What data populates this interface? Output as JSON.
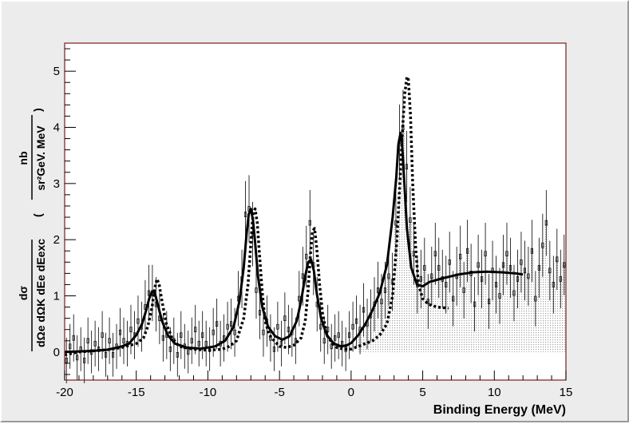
{
  "chart_data": {
    "type": "line",
    "xlabel": "Binding Energy (MeV)",
    "ylabel": {
      "numerator": "dσ",
      "denominator": "dΩe dΩK dEe dEexc",
      "unit_numerator": "nb",
      "unit_denominator": "sr²GeV. MeV"
    },
    "xlim": [
      -20,
      15
    ],
    "ylim": [
      -0.5,
      5.5
    ],
    "x_ticks": [
      "-20",
      "-15",
      "-10",
      "-5",
      "0",
      "5",
      "10",
      "15"
    ],
    "y_ticks": [
      "0",
      "1",
      "2",
      "3",
      "4",
      "5"
    ],
    "grid": false,
    "legend": "none",
    "colors": {
      "data": "#000000",
      "frame": "#7a1f1f",
      "fill": "#a0a0a0",
      "background": "#ececec"
    },
    "series": [
      {
        "style": "histogram-with-errors",
        "x": [
          -20.0,
          -19.75,
          -19.5,
          -19.25,
          -19.0,
          -18.75,
          -18.5,
          -18.25,
          -18.0,
          -17.75,
          -17.5,
          -17.25,
          -17.0,
          -16.75,
          -16.5,
          -16.25,
          -16.0,
          -15.75,
          -15.5,
          -15.25,
          -15.0,
          -14.75,
          -14.5,
          -14.25,
          -14.0,
          -13.75,
          -13.5,
          -13.25,
          -13.0,
          -12.75,
          -12.5,
          -12.25,
          -12.0,
          -11.75,
          -11.5,
          -11.25,
          -11.0,
          -10.75,
          -10.5,
          -10.25,
          -10.0,
          -9.75,
          -9.5,
          -9.25,
          -9.0,
          -8.75,
          -8.5,
          -8.25,
          -8.0,
          -7.75,
          -7.5,
          -7.25,
          -7.0,
          -6.75,
          -6.5,
          -6.25,
          -6.0,
          -5.75,
          -5.5,
          -5.25,
          -5.0,
          -4.75,
          -4.5,
          -4.25,
          -4.0,
          -3.75,
          -3.5,
          -3.25,
          -3.0,
          -2.75,
          -2.5,
          -2.25,
          -2.0,
          -1.75,
          -1.5,
          -1.25,
          -1.0,
          -0.75,
          -0.5,
          -0.25,
          0.0,
          0.25,
          0.5,
          0.75,
          1.0,
          1.25,
          1.5,
          1.75,
          2.0,
          2.25,
          2.5,
          2.75,
          3.0,
          3.25,
          3.5,
          3.75,
          4.0,
          4.25,
          4.5,
          4.75,
          5.0,
          5.25,
          5.5,
          5.75,
          6.0,
          6.25,
          6.5,
          6.75,
          7.0,
          7.25,
          7.5,
          7.75,
          8.0,
          8.25,
          8.5,
          8.75,
          9.0,
          9.25,
          9.5,
          9.75,
          10.0,
          10.25,
          10.5,
          10.75,
          11.0,
          11.25,
          11.5,
          11.75,
          12.0,
          12.25,
          12.5,
          12.75,
          13.0,
          13.25,
          13.5,
          13.75,
          14.0,
          14.25,
          14.5,
          14.75
        ],
        "y": [
          -0.15,
          0.1,
          0.25,
          -0.1,
          0.05,
          -0.15,
          0.2,
          0.0,
          0.15,
          0.05,
          0.3,
          -0.05,
          0.2,
          -0.05,
          0.1,
          0.35,
          0.2,
          0.15,
          0.4,
          0.3,
          0.55,
          0.45,
          0.8,
          1.05,
          1.05,
          0.85,
          0.6,
          0.25,
          0.3,
          0.05,
          0.2,
          -0.05,
          0.3,
          0.1,
          0.0,
          0.2,
          0.4,
          0.15,
          0.3,
          0.15,
          0.05,
          0.35,
          0.5,
          0.15,
          0.25,
          0.45,
          0.5,
          0.35,
          0.95,
          1.3,
          2.45,
          2.55,
          2.1,
          1.1,
          0.7,
          0.35,
          0.55,
          0.25,
          0.05,
          0.45,
          0.15,
          0.6,
          0.4,
          0.35,
          0.2,
          0.95,
          1.35,
          1.7,
          2.3,
          1.55,
          0.85,
          0.45,
          0.2,
          0.4,
          0.1,
          0.25,
          0.3,
          0.15,
          0.05,
          0.3,
          0.45,
          0.55,
          0.4,
          0.75,
          0.5,
          0.65,
          0.85,
          1.1,
          0.9,
          1.1,
          1.35,
          1.25,
          2.3,
          3.75,
          4.0,
          3.3,
          2.35,
          1.75,
          1.2,
          1.3,
          1.5,
          0.9,
          1.35,
          1.75,
          1.5,
          1.3,
          1.2,
          1.6,
          0.95,
          1.35,
          1.7,
          1.1,
          1.8,
          1.4,
          0.85,
          1.55,
          1.3,
          1.75,
          0.9,
          1.45,
          1.2,
          1.0,
          1.55,
          1.75,
          1.5,
          1.05,
          1.3,
          1.6,
          1.45,
          1.35,
          1.8,
          0.95,
          1.5,
          1.9,
          2.3,
          1.45,
          1.2,
          1.65,
          1.3,
          1.55
        ]
      },
      {
        "style": "solid-curve",
        "x": [
          -20,
          -19,
          -18,
          -17,
          -16,
          -15.5,
          -15,
          -14.6,
          -14.3,
          -14.1,
          -13.9,
          -13.7,
          -13.5,
          -13.2,
          -12.8,
          -12.3,
          -11.5,
          -10.5,
          -9.5,
          -8.8,
          -8.2,
          -7.8,
          -7.5,
          -7.3,
          -7.15,
          -7.0,
          -6.85,
          -6.7,
          -6.5,
          -6.2,
          -5.8,
          -5.3,
          -4.8,
          -4.3,
          -3.8,
          -3.5,
          -3.2,
          -3.0,
          -2.8,
          -2.6,
          -2.4,
          -2.1,
          -1.7,
          -1.2,
          -0.7,
          -0.3,
          0.0,
          0.5,
          1.0,
          1.5,
          2.0,
          2.5,
          2.9,
          3.15,
          3.3,
          3.45,
          3.55,
          3.7,
          3.9,
          4.2,
          4.6,
          5.0,
          5.5,
          6.5,
          7.5,
          8.5,
          9.5,
          10.5,
          11.5,
          12.0
        ],
        "y": [
          0.0,
          0.01,
          0.02,
          0.04,
          0.1,
          0.15,
          0.3,
          0.5,
          0.75,
          0.95,
          1.08,
          1.05,
          0.85,
          0.55,
          0.3,
          0.15,
          0.08,
          0.06,
          0.1,
          0.2,
          0.45,
          0.9,
          1.5,
          2.1,
          2.45,
          2.55,
          2.35,
          1.95,
          1.35,
          0.8,
          0.45,
          0.28,
          0.22,
          0.28,
          0.55,
          0.9,
          1.35,
          1.6,
          1.65,
          1.45,
          1.05,
          0.6,
          0.3,
          0.15,
          0.1,
          0.12,
          0.16,
          0.3,
          0.5,
          0.75,
          1.05,
          1.55,
          2.4,
          3.1,
          3.7,
          3.9,
          3.75,
          3.1,
          2.2,
          1.5,
          1.2,
          1.17,
          1.25,
          1.32,
          1.38,
          1.42,
          1.43,
          1.42,
          1.4,
          1.38
        ]
      },
      {
        "style": "dotted-curve",
        "x": [
          -20,
          -19,
          -18,
          -17,
          -16,
          -15,
          -14.5,
          -14.2,
          -13.9,
          -13.7,
          -13.55,
          -13.4,
          -13.2,
          -12.9,
          -12.5,
          -12,
          -11,
          -10,
          -9,
          -8.5,
          -8,
          -7.5,
          -7.2,
          -7.0,
          -6.85,
          -6.7,
          -6.55,
          -6.4,
          -6.2,
          -6.0,
          -5.7,
          -5.3,
          -5,
          -4.5,
          -4,
          -3.5,
          -3.2,
          -3.0,
          -2.85,
          -2.7,
          -2.55,
          -2.4,
          -2.2,
          -2.0,
          -1.7,
          -1.3,
          -1,
          -0.5,
          0,
          0.5,
          1,
          1.5,
          2,
          2.5,
          2.9,
          3.2,
          3.4,
          3.6,
          3.75,
          3.9,
          4.0,
          4.15,
          4.3,
          4.5,
          4.7,
          5.0,
          5.4,
          6.0,
          6.8
        ],
        "y": [
          -0.05,
          0.0,
          0.02,
          0.04,
          0.08,
          0.15,
          0.25,
          0.45,
          0.8,
          1.15,
          1.3,
          1.2,
          0.9,
          0.5,
          0.25,
          0.1,
          0.05,
          0.03,
          0.05,
          0.1,
          0.2,
          0.6,
          1.2,
          1.95,
          2.45,
          2.55,
          2.3,
          1.75,
          1.05,
          0.55,
          0.3,
          0.18,
          0.1,
          0.08,
          0.12,
          0.25,
          0.55,
          1.1,
          1.7,
          2.15,
          2.2,
          1.85,
          1.2,
          0.7,
          0.3,
          0.15,
          0.08,
          0.05,
          0.05,
          0.1,
          0.15,
          0.2,
          0.3,
          0.5,
          1.0,
          2.0,
          3.0,
          4.0,
          4.6,
          4.9,
          4.85,
          4.2,
          3.0,
          1.9,
          1.2,
          0.95,
          0.85,
          0.8,
          0.78
        ]
      }
    ]
  }
}
